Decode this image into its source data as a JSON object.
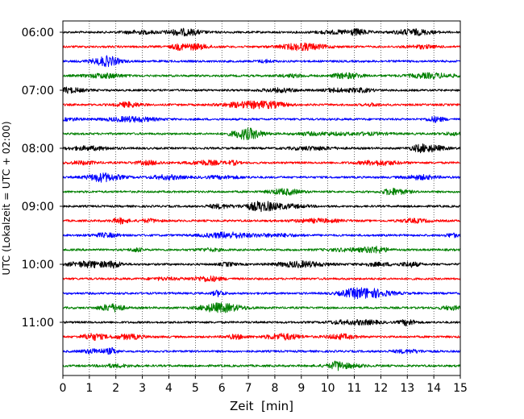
{
  "chart_data": {
    "type": "line",
    "title": "",
    "xlabel": "Zeit  [min]",
    "ylabel": "UTC (Lokalzeit = UTC + 02:00)",
    "xlim": [
      0,
      15
    ],
    "x_ticks": [
      0,
      1,
      2,
      3,
      4,
      5,
      6,
      7,
      8,
      9,
      10,
      11,
      12,
      13,
      14,
      15
    ],
    "x_tick_labels": [
      "0",
      "1",
      "2",
      "3",
      "4",
      "5",
      "6",
      "7",
      "8",
      "9",
      "10",
      "11",
      "12",
      "13",
      "14",
      "15"
    ],
    "y_tick_labels": [
      "06:00",
      "07:00",
      "08:00",
      "09:00",
      "10:00",
      "11:00"
    ],
    "grid": "vertical dotted at each minute",
    "legend": "none",
    "colors": [
      "#000000",
      "#ff0000",
      "#0000ff",
      "#008000"
    ],
    "traces": [
      {
        "start": "06:00",
        "color": "#000000"
      },
      {
        "start": "06:15",
        "color": "#ff0000"
      },
      {
        "start": "06:30",
        "color": "#0000ff"
      },
      {
        "start": "06:45",
        "color": "#008000"
      },
      {
        "start": "07:00",
        "color": "#000000"
      },
      {
        "start": "07:15",
        "color": "#ff0000"
      },
      {
        "start": "07:30",
        "color": "#0000ff"
      },
      {
        "start": "07:45",
        "color": "#008000"
      },
      {
        "start": "08:00",
        "color": "#000000"
      },
      {
        "start": "08:15",
        "color": "#ff0000"
      },
      {
        "start": "08:30",
        "color": "#0000ff"
      },
      {
        "start": "08:45",
        "color": "#008000"
      },
      {
        "start": "09:00",
        "color": "#000000"
      },
      {
        "start": "09:15",
        "color": "#ff0000"
      },
      {
        "start": "09:30",
        "color": "#0000ff"
      },
      {
        "start": "09:45",
        "color": "#008000"
      },
      {
        "start": "10:00",
        "color": "#000000"
      },
      {
        "start": "10:15",
        "color": "#ff0000"
      },
      {
        "start": "10:30",
        "color": "#0000ff"
      },
      {
        "start": "10:45",
        "color": "#008000"
      },
      {
        "start": "11:00",
        "color": "#000000"
      },
      {
        "start": "11:15",
        "color": "#ff0000"
      },
      {
        "start": "11:30",
        "color": "#0000ff"
      },
      {
        "start": "11:45",
        "color": "#008000"
      }
    ]
  }
}
